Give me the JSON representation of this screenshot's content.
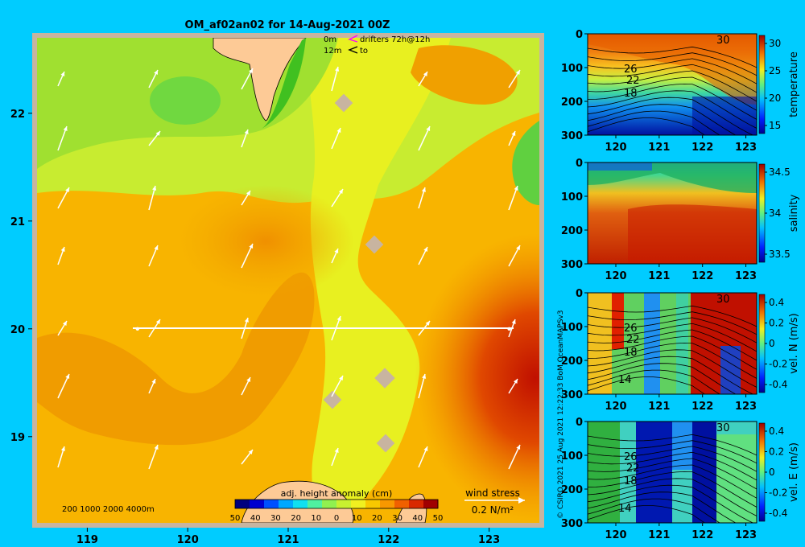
{
  "title": "OM_af02an02 for 14-Aug-2021 00Z",
  "credit": "© CSIRO 2021   25 Aug 2021 12:22:33 BoM OceanMAPSv3",
  "colors": {
    "background": "#00ccff",
    "land": "#fdca96",
    "frame": "#c8b4a0",
    "transect": "#ffffff"
  },
  "chart_data": [
    {
      "type": "heatmap",
      "panel": "map",
      "xticks": [
        "119",
        "120",
        "121",
        "122",
        "123"
      ],
      "xtick_values": [
        119,
        120,
        121,
        122,
        123
      ],
      "yticks": [
        "22",
        "21",
        "20",
        "19"
      ],
      "ytick_values": [
        22,
        21,
        20,
        19
      ],
      "xlim": [
        118.5,
        123.5
      ],
      "ylim": [
        18.2,
        22.7
      ],
      "colorbar": {
        "label": "adj. height anomaly (cm)",
        "ticks": [
          "50",
          "40",
          "30",
          "20",
          "10",
          "0",
          "10",
          "20",
          "30",
          "40",
          "50"
        ],
        "colors": [
          "#00007f",
          "#0000d0",
          "#0050ff",
          "#00a8ff",
          "#10e0f0",
          "#50f0a0",
          "#90f050",
          "#c8f030",
          "#f0f020",
          "#f8c800",
          "#f89800",
          "#f06000",
          "#d82800",
          "#a00000"
        ]
      },
      "depth_legend": "200  1000  2000  4000m",
      "wind_legend": {
        "title": "wind stress",
        "value": "0.2 N/m²"
      },
      "drifter_legend": {
        "row1_depth": "0m",
        "row1_text": "drifters 72h@12h",
        "row2_depth": "12m",
        "row2_text": "to"
      },
      "transect": {
        "lon_start": 119.5,
        "lon_end": 123.2,
        "lat": 20.0
      }
    },
    {
      "type": "heatmap",
      "panel": "section",
      "name": "temperature",
      "ylabel": "temperature",
      "xticks": [
        "120",
        "121",
        "122",
        "123"
      ],
      "yticks": [
        "0",
        "100",
        "200",
        "300"
      ],
      "cbar_ticks": [
        "30",
        "25",
        "20",
        "15"
      ],
      "contour_labels": [
        "30",
        "26",
        "22",
        "18"
      ]
    },
    {
      "type": "heatmap",
      "panel": "section",
      "name": "salinity",
      "ylabel": "salinity",
      "xticks": [
        "120",
        "121",
        "122",
        "123"
      ],
      "yticks": [
        "0",
        "100",
        "200",
        "300"
      ],
      "cbar_ticks": [
        "34.5",
        "34",
        "33.5"
      ],
      "contour_labels": []
    },
    {
      "type": "heatmap",
      "panel": "section",
      "name": "vel-n",
      "ylabel": "vel. N (m/s)",
      "xticks": [
        "120",
        "121",
        "122",
        "123"
      ],
      "yticks": [
        "0",
        "100",
        "200",
        "300"
      ],
      "cbar_ticks": [
        "0.4",
        "0.2",
        "0",
        "-0.2",
        "-0.4"
      ],
      "contour_labels": [
        "30",
        "26",
        "22",
        "18",
        "14"
      ]
    },
    {
      "type": "heatmap",
      "panel": "section",
      "name": "vel-e",
      "ylabel": "vel. E (m/s)",
      "xticks": [
        "120",
        "121",
        "122",
        "123"
      ],
      "yticks": [
        "0",
        "100",
        "200",
        "300"
      ],
      "cbar_ticks": [
        "0.4",
        "0.2",
        "0",
        "-0.2",
        "-0.4"
      ],
      "contour_labels": [
        "30",
        "26",
        "22",
        "18",
        "14"
      ]
    }
  ]
}
